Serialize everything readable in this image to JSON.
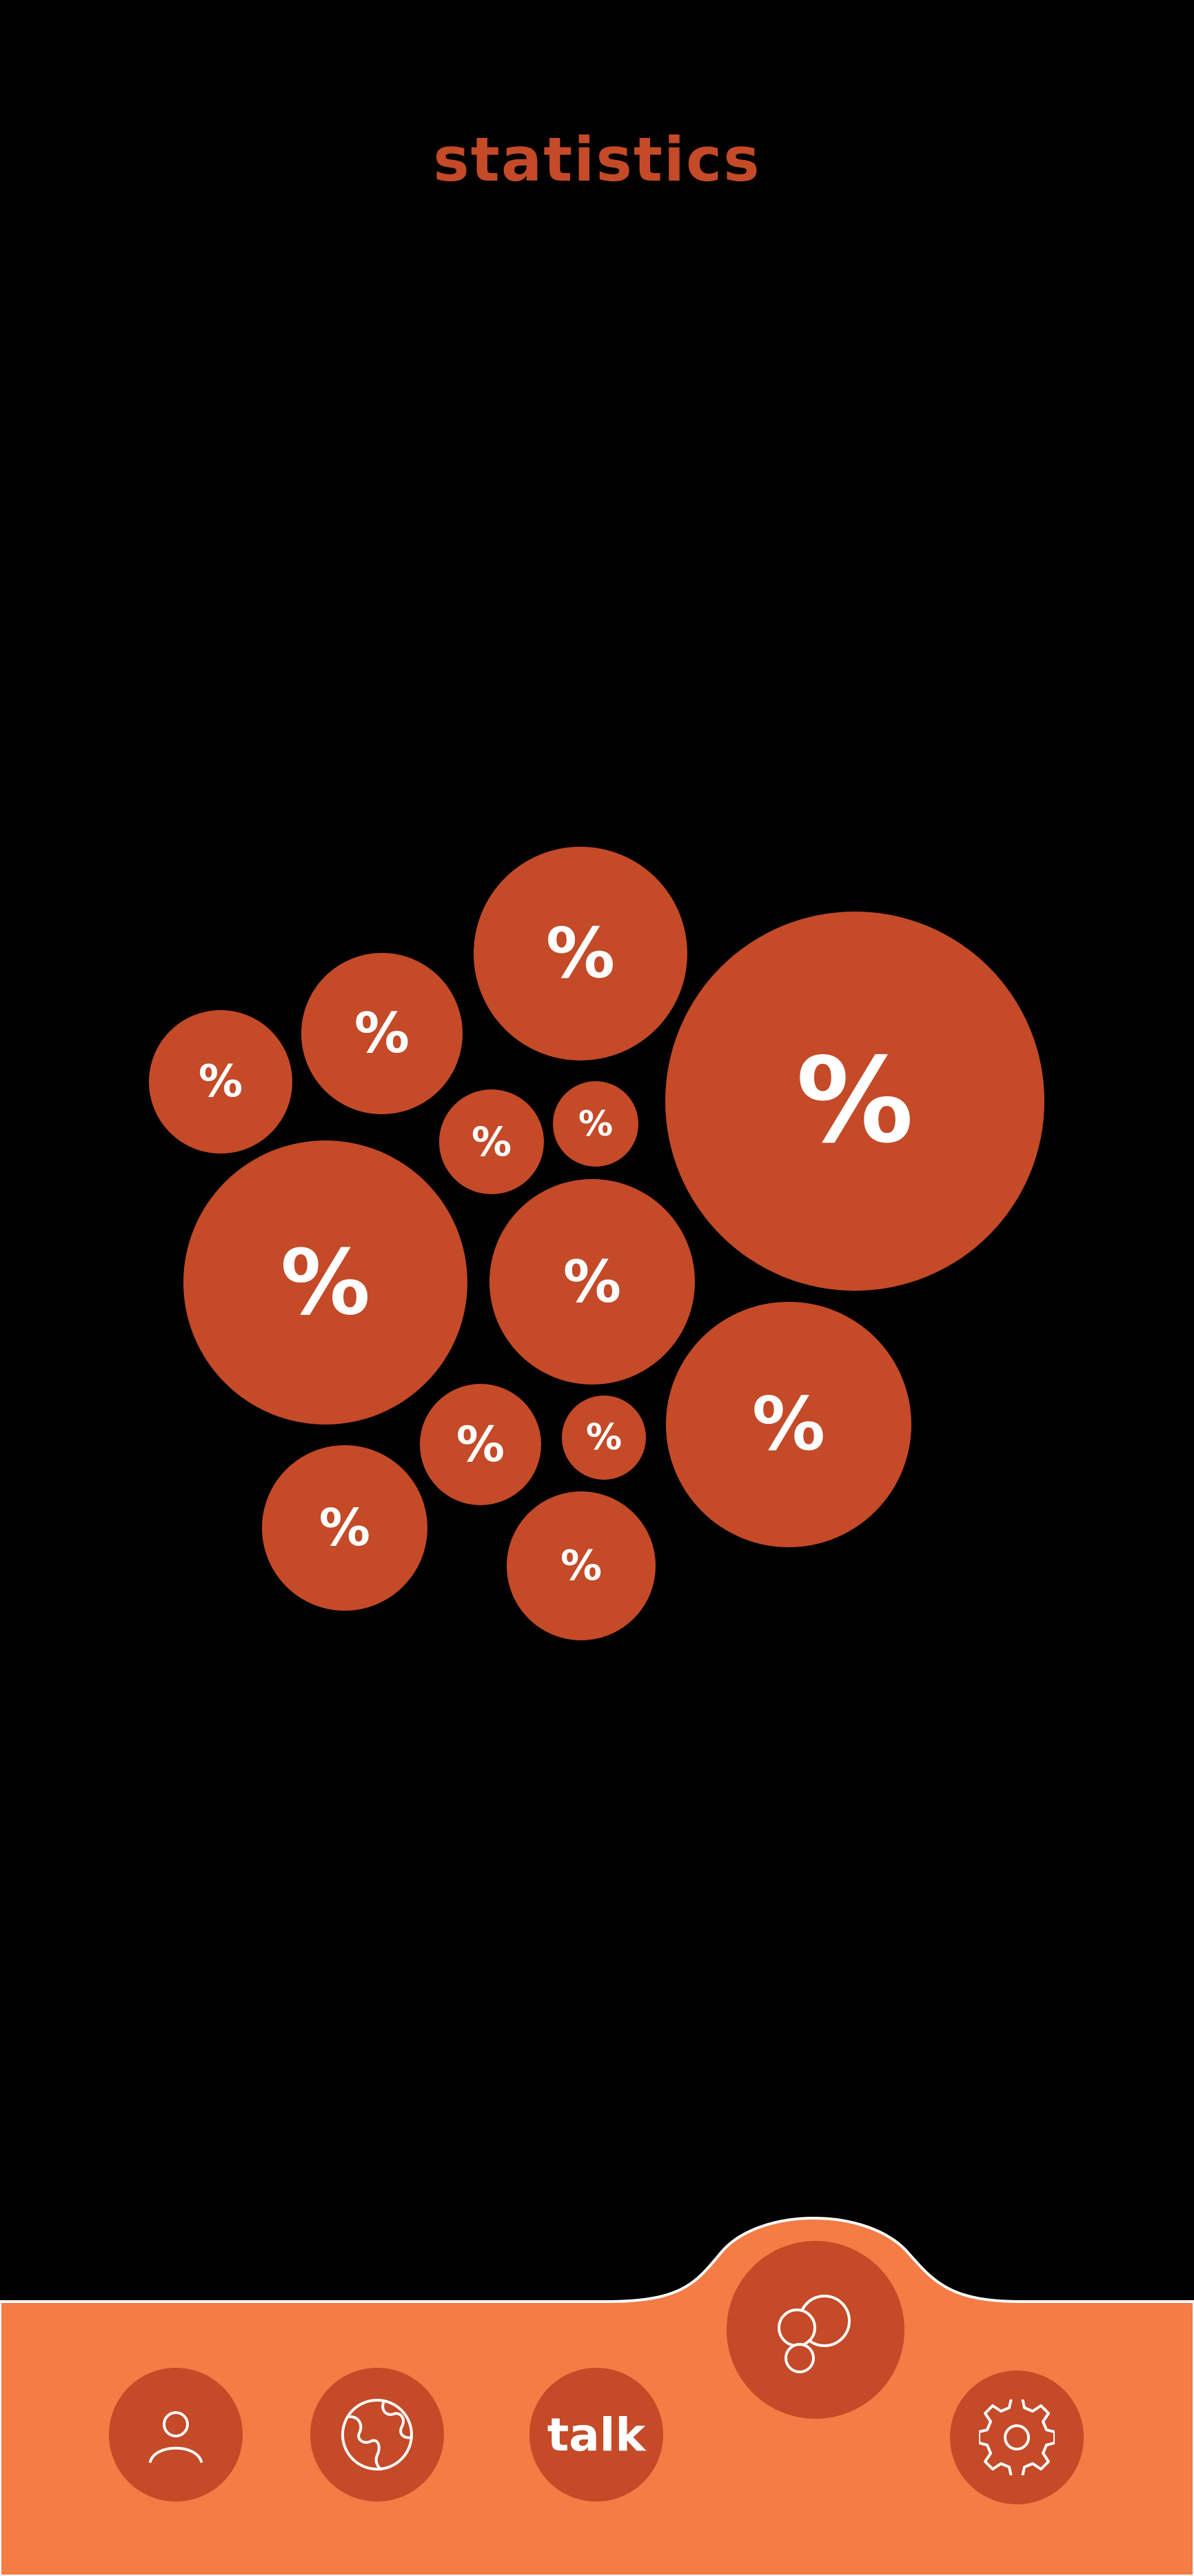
{
  "colors": {
    "background": "#000000",
    "accent": "#C44A28",
    "nav_background": "#F47C45",
    "icon": "#FFFFFF"
  },
  "header": {
    "title": "statistics"
  },
  "bubbles": [
    {
      "label": "%"
    },
    {
      "label": "%"
    },
    {
      "label": "%"
    },
    {
      "label": "%"
    },
    {
      "label": "%"
    },
    {
      "label": "%"
    },
    {
      "label": "%"
    },
    {
      "label": "%"
    },
    {
      "label": "%"
    },
    {
      "label": "%"
    },
    {
      "label": "%"
    },
    {
      "label": "%"
    },
    {
      "label": "%"
    }
  ],
  "nav": {
    "items": [
      {
        "icon": "user-icon"
      },
      {
        "icon": "globe-icon"
      },
      {
        "label": "talk"
      },
      {
        "icon": "bubbles-icon",
        "active": true
      },
      {
        "icon": "gear-icon"
      }
    ]
  }
}
